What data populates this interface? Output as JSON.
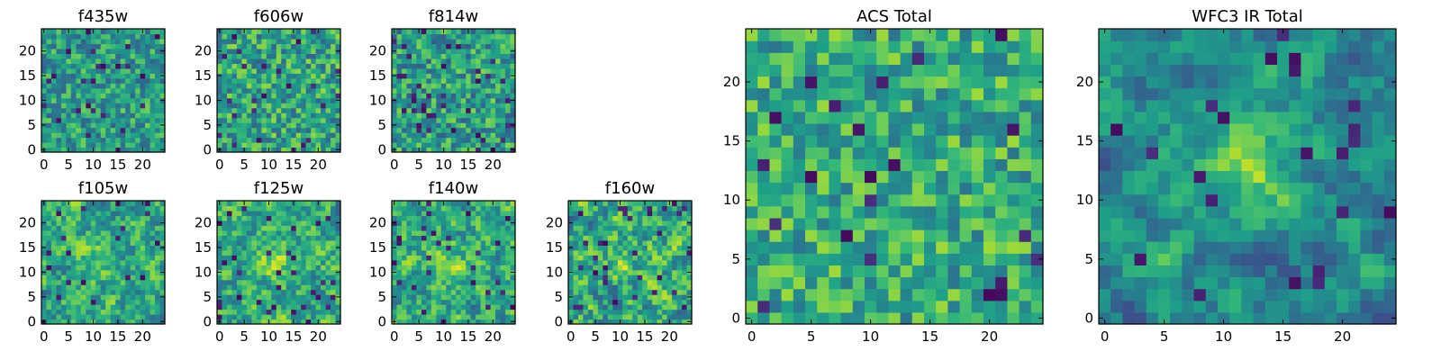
{
  "figure": {
    "description_none": null
  },
  "chart_data": [
    {
      "type": "heatmap",
      "title": "f435w",
      "grid": false,
      "cmap": "viridis",
      "x_range": [
        0,
        24
      ],
      "y_range": [
        0,
        24
      ],
      "xticks": [
        "0",
        "5",
        "10",
        "15",
        "20"
      ],
      "yticks": [
        "0",
        "5",
        "10",
        "15",
        "20"
      ],
      "pixels": [
        25,
        25
      ],
      "seed": 11,
      "smooth": 0,
      "center_boost": 0.0,
      "bias": 0.55,
      "spread": 0.18,
      "dark_frac": 0.04
    },
    {
      "type": "heatmap",
      "title": "f606w",
      "grid": false,
      "cmap": "viridis",
      "x_range": [
        0,
        24
      ],
      "y_range": [
        0,
        24
      ],
      "xticks": [
        "0",
        "5",
        "10",
        "15",
        "20"
      ],
      "yticks": [
        "0",
        "5",
        "10",
        "15",
        "20"
      ],
      "pixels": [
        25,
        25
      ],
      "seed": 23,
      "smooth": 0,
      "center_boost": 0.0,
      "bias": 0.58,
      "spread": 0.2,
      "dark_frac": 0.04
    },
    {
      "type": "heatmap",
      "title": "f814w",
      "grid": false,
      "cmap": "viridis",
      "x_range": [
        0,
        24
      ],
      "y_range": [
        0,
        24
      ],
      "xticks": [
        "0",
        "5",
        "10",
        "15",
        "20"
      ],
      "yticks": [
        "0",
        "5",
        "10",
        "15",
        "20"
      ],
      "pixels": [
        25,
        25
      ],
      "seed": 37,
      "smooth": 0,
      "center_boost": 0.0,
      "bias": 0.55,
      "spread": 0.2,
      "dark_frac": 0.06
    },
    {
      "type": "heatmap",
      "title": "f105w",
      "grid": false,
      "cmap": "viridis",
      "x_range": [
        0,
        24
      ],
      "y_range": [
        0,
        24
      ],
      "xticks": [
        "0",
        "5",
        "10",
        "15",
        "20"
      ],
      "yticks": [
        "0",
        "5",
        "10",
        "15",
        "20"
      ],
      "pixels": [
        25,
        25
      ],
      "seed": 41,
      "smooth": 1,
      "center_boost": 0.12,
      "bias": 0.6,
      "spread": 0.22,
      "dark_frac": 0.04
    },
    {
      "type": "heatmap",
      "title": "f125w",
      "grid": false,
      "cmap": "viridis",
      "x_range": [
        0,
        24
      ],
      "y_range": [
        0,
        24
      ],
      "xticks": [
        "0",
        "5",
        "10",
        "15",
        "20"
      ],
      "yticks": [
        "0",
        "5",
        "10",
        "15",
        "20"
      ],
      "pixels": [
        25,
        25
      ],
      "seed": 53,
      "smooth": 1,
      "center_boost": 0.15,
      "bias": 0.6,
      "spread": 0.22,
      "dark_frac": 0.04
    },
    {
      "type": "heatmap",
      "title": "f140w",
      "grid": false,
      "cmap": "viridis",
      "x_range": [
        0,
        24
      ],
      "y_range": [
        0,
        24
      ],
      "xticks": [
        "0",
        "5",
        "10",
        "15",
        "20"
      ],
      "yticks": [
        "0",
        "5",
        "10",
        "15",
        "20"
      ],
      "pixels": [
        25,
        25
      ],
      "seed": 67,
      "smooth": 1,
      "center_boost": 0.12,
      "bias": 0.6,
      "spread": 0.22,
      "dark_frac": 0.04
    },
    {
      "type": "heatmap",
      "title": "f160w",
      "grid": false,
      "cmap": "viridis",
      "x_range": [
        0,
        24
      ],
      "y_range": [
        0,
        24
      ],
      "xticks": [
        "0",
        "5",
        "10",
        "15",
        "20"
      ],
      "yticks": [
        "0",
        "5",
        "10",
        "15",
        "20"
      ],
      "pixels": [
        25,
        25
      ],
      "seed": 79,
      "smooth": 1,
      "center_boost": 0.12,
      "bias": 0.6,
      "spread": 0.24,
      "dark_frac": 0.05
    },
    {
      "type": "heatmap",
      "title": "ACS Total",
      "grid": false,
      "cmap": "viridis",
      "x_range": [
        0,
        24
      ],
      "y_range": [
        0,
        24
      ],
      "xticks": [
        "0",
        "5",
        "10",
        "15",
        "20"
      ],
      "yticks": [
        "0",
        "5",
        "10",
        "15",
        "20"
      ],
      "pixels": [
        25,
        25
      ],
      "seed": 97,
      "smooth": 0,
      "center_boost": 0.0,
      "bias": 0.62,
      "spread": 0.18,
      "dark_frac": 0.04
    },
    {
      "type": "heatmap",
      "title": "WFC3 IR Total",
      "grid": false,
      "cmap": "viridis",
      "x_range": [
        0,
        24
      ],
      "y_range": [
        0,
        24
      ],
      "xticks": [
        "0",
        "5",
        "10",
        "15",
        "20"
      ],
      "yticks": [
        "0",
        "5",
        "10",
        "15",
        "20"
      ],
      "pixels": [
        25,
        25
      ],
      "seed": 131,
      "smooth": 2,
      "center_boost": 0.35,
      "bias": 0.5,
      "spread": 0.2,
      "dark_frac": 0.04
    }
  ]
}
